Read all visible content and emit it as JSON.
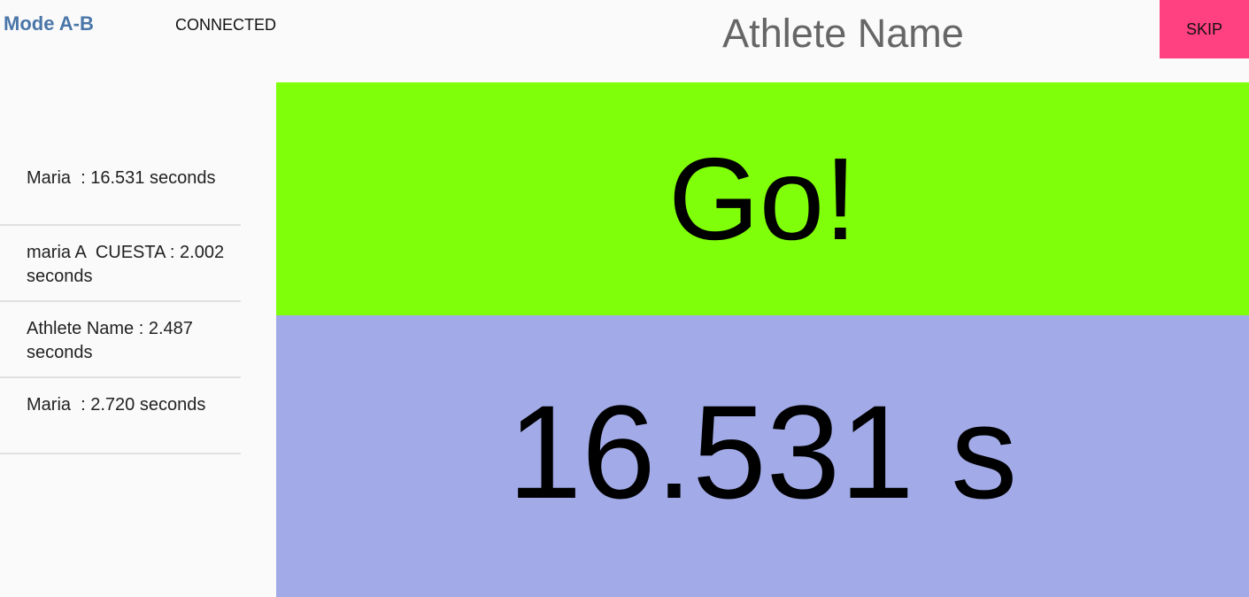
{
  "header": {
    "mode_label": "Mode A-B",
    "connection_status": "CONNECTED",
    "athlete_name": "Athlete Name",
    "skip_label": "SKIP"
  },
  "results": [
    {
      "text": "Maria  : 16.531 seconds"
    },
    {
      "text": "maria A  CUESTA : 2.002 seconds"
    },
    {
      "text": "Athlete Name : 2.487 seconds"
    },
    {
      "text": "Maria  : 2.720 seconds"
    }
  ],
  "status_panel": {
    "text": "Go!",
    "color": "#80ff0a"
  },
  "timer_panel": {
    "text": "16.531 s",
    "color": "#a2abe8"
  },
  "colors": {
    "mode": "#4a76a8",
    "skip": "#ff4081"
  }
}
